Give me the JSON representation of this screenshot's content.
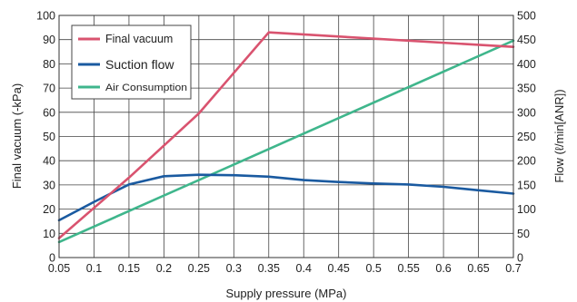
{
  "chart_data": {
    "type": "line",
    "xlabel": "Supply pressure (MPa)",
    "ylabel_left": "Final vacuum (-kPa)",
    "ylabel_right": "Flow (ℓ/min[ANR])",
    "xlim": [
      0.05,
      0.7
    ],
    "ylim_left": [
      0,
      100
    ],
    "ylim_right": [
      0,
      500
    ],
    "x_ticks": [
      "0.05",
      "0.1",
      "0.15",
      "0.2",
      "0.25",
      "0.3",
      "0.35",
      "0.4",
      "0.45",
      "0.5",
      "0.55",
      "0.6",
      "0.65",
      "0.7"
    ],
    "y_left_ticks": [
      "0",
      "10",
      "20",
      "30",
      "40",
      "50",
      "60",
      "70",
      "80",
      "90",
      "100"
    ],
    "y_right_ticks": [
      "0",
      "50",
      "100",
      "150",
      "200",
      "250",
      "300",
      "350",
      "400",
      "450",
      "500"
    ],
    "grid": true,
    "legend_position": "top-left",
    "series": [
      {
        "name": "Final vacuum",
        "axis": "left",
        "color": "#d9536f",
        "x": [
          0.05,
          0.15,
          0.25,
          0.35,
          0.7
        ],
        "y": [
          8,
          33,
          59.5,
          93,
          87
        ]
      },
      {
        "name": "Suction flow",
        "axis": "right",
        "color": "#1a5aa0",
        "x": [
          0.05,
          0.1,
          0.15,
          0.2,
          0.25,
          0.3,
          0.35,
          0.4,
          0.45,
          0.5,
          0.55,
          0.6,
          0.65,
          0.7
        ],
        "y": [
          77,
          115,
          151,
          168,
          171,
          170,
          167,
          160,
          156,
          153,
          151,
          146,
          139,
          132
        ]
      },
      {
        "name": "Air Consumption",
        "axis": "right",
        "color": "#3fb68c",
        "x": [
          0.05,
          0.7
        ],
        "y": [
          32,
          448
        ]
      }
    ]
  }
}
